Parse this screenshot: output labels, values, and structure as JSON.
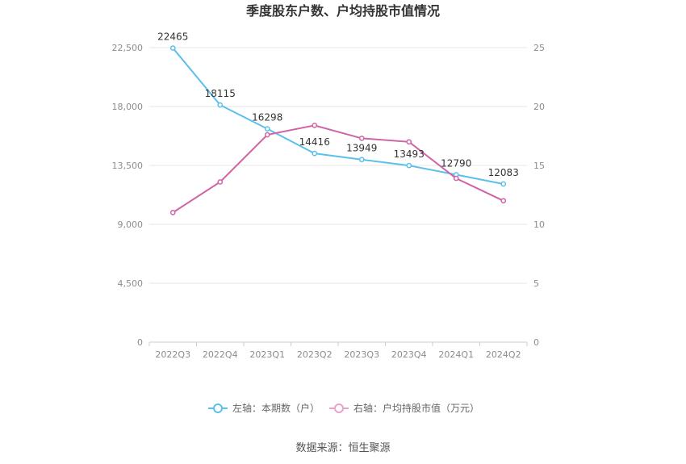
{
  "chart_data": {
    "type": "line",
    "title": "季度股东户数、户均持股市值情况",
    "categories": [
      "2022Q3",
      "2022Q4",
      "2023Q1",
      "2023Q2",
      "2023Q3",
      "2023Q4",
      "2024Q1",
      "2024Q2"
    ],
    "left_axis": {
      "ylim": [
        0,
        22500
      ],
      "ticks": [
        "0",
        "4,500",
        "9,000",
        "13,500",
        "18,000",
        "22,500"
      ],
      "tick_values": [
        0,
        4500,
        9000,
        13500,
        18000,
        22500
      ]
    },
    "right_axis": {
      "ylim": [
        0,
        25
      ],
      "ticks": [
        "0",
        "5",
        "10",
        "15",
        "20",
        "25"
      ],
      "tick_values": [
        0,
        5,
        10,
        15,
        20,
        25
      ]
    },
    "series": [
      {
        "name": "左轴：本期数（户）",
        "axis": "left",
        "color": "#5bc0eb",
        "values": [
          22465,
          18115,
          16298,
          14416,
          13949,
          13493,
          12790,
          12083
        ],
        "labels": [
          "22465",
          "18115",
          "16298",
          "14416",
          "13949",
          "13493",
          "12790",
          "12083"
        ]
      },
      {
        "name": "右轴：户均持股市值（万元）",
        "axis": "right",
        "color": "#d063a6",
        "values": [
          11.0,
          13.6,
          17.6,
          18.4,
          17.3,
          17.0,
          13.9,
          12.0
        ]
      }
    ],
    "grid": true,
    "legend": "bottom",
    "source": "数据来源：恒生聚源"
  },
  "colors": {
    "grid": "#e6e6e6",
    "axis": "#cccccc",
    "legend_right": "#e8a3cc"
  }
}
